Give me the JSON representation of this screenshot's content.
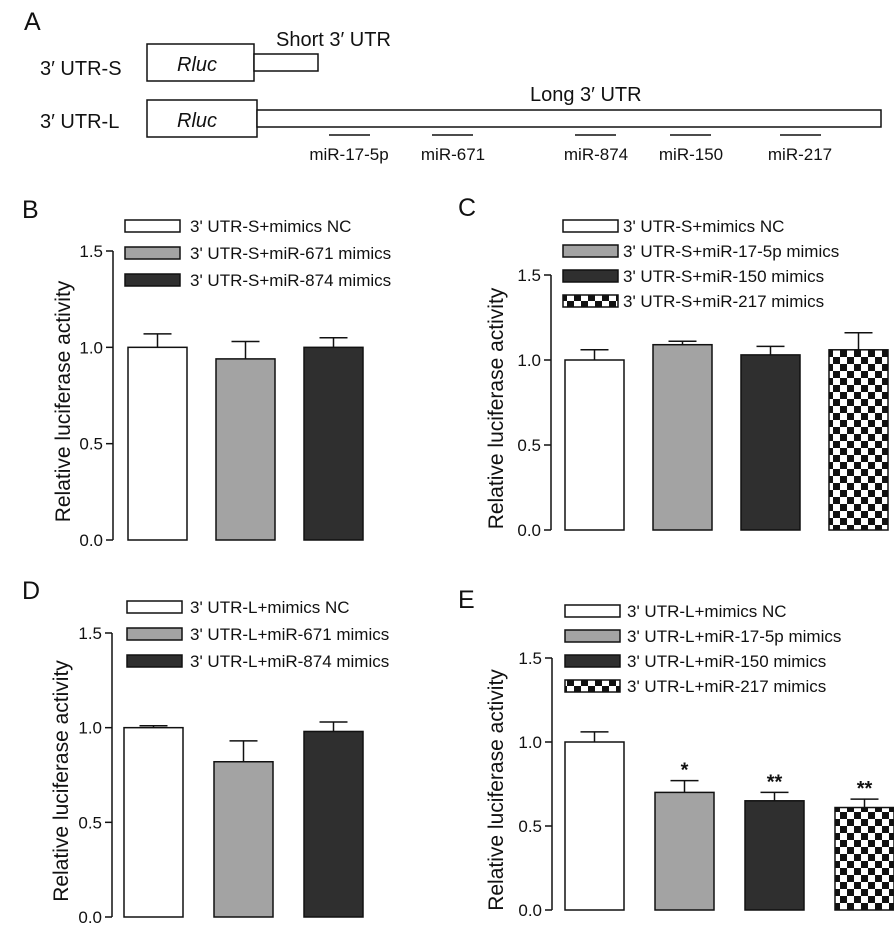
{
  "panelA": {
    "letter": "A",
    "constructs": [
      {
        "label": "3′ UTR-S",
        "gene": "Rluc",
        "utr_label": "Short 3′ UTR"
      },
      {
        "label": "3′ UTR-L",
        "gene": "Rluc",
        "utr_label": "Long 3′ UTR"
      }
    ],
    "mirna_sites": [
      "miR-17-5p",
      "miR-671",
      "miR-874",
      "miR-150",
      "miR-217"
    ]
  },
  "colors": {
    "white": "#ffffff",
    "gray": "#a3a3a3",
    "dark": "#2f2f2f",
    "axis": "#111111"
  },
  "chart_data": [
    {
      "panel": "B",
      "type": "bar",
      "ylabel": "Relative luciferase activity",
      "ylim": [
        0,
        1.5
      ],
      "yticks": [
        "0.0",
        "0.5",
        "1.0",
        "1.5"
      ],
      "categories": [
        "3' UTR-S+mimics NC",
        "3' UTR-S+miR-671 mimics",
        "3' UTR-S+miR-874 mimics"
      ],
      "values": [
        1.0,
        0.94,
        1.0
      ],
      "errors": [
        0.07,
        0.09,
        0.05
      ],
      "fills": [
        "white",
        "gray",
        "dark"
      ],
      "significance": [
        "",
        "",
        ""
      ]
    },
    {
      "panel": "C",
      "type": "bar",
      "ylabel": "Relative luciferase activity",
      "ylim": [
        0,
        1.5
      ],
      "yticks": [
        "0.0",
        "0.5",
        "1.0",
        "1.5"
      ],
      "categories": [
        "3' UTR-S+mimics NC",
        "3' UTR-S+miR-17-5p mimics",
        "3' UTR-S+miR-150 mimics",
        "3' UTR-S+miR-217 mimics"
      ],
      "values": [
        1.0,
        1.09,
        1.03,
        1.06
      ],
      "errors": [
        0.06,
        0.02,
        0.05,
        0.1
      ],
      "fills": [
        "white",
        "gray",
        "dark",
        "checker"
      ],
      "significance": [
        "",
        "",
        "",
        ""
      ]
    },
    {
      "panel": "D",
      "type": "bar",
      "ylabel": "Relative luciferase activity",
      "ylim": [
        0,
        1.5
      ],
      "yticks": [
        "0.0",
        "0.5",
        "1.0",
        "1.5"
      ],
      "categories": [
        "3' UTR-L+mimics NC",
        "3' UTR-L+miR-671 mimics",
        "3' UTR-L+miR-874 mimics"
      ],
      "values": [
        1.0,
        0.82,
        0.98
      ],
      "errors": [
        0.01,
        0.11,
        0.05
      ],
      "fills": [
        "white",
        "gray",
        "dark"
      ],
      "significance": [
        "",
        "",
        ""
      ]
    },
    {
      "panel": "E",
      "type": "bar",
      "ylabel": "Relative luciferase activity",
      "ylim": [
        0,
        1.5
      ],
      "yticks": [
        "0.0",
        "0.5",
        "1.0",
        "1.5"
      ],
      "categories": [
        "3' UTR-L+mimics NC",
        "3' UTR-L+miR-17-5p mimics",
        "3' UTR-L+miR-150 mimics",
        "3' UTR-L+miR-217 mimics"
      ],
      "values": [
        1.0,
        0.7,
        0.65,
        0.61
      ],
      "errors": [
        0.06,
        0.07,
        0.05,
        0.05
      ],
      "fills": [
        "white",
        "gray",
        "dark",
        "checker"
      ],
      "significance": [
        "",
        "*",
        "**",
        "**"
      ]
    }
  ]
}
